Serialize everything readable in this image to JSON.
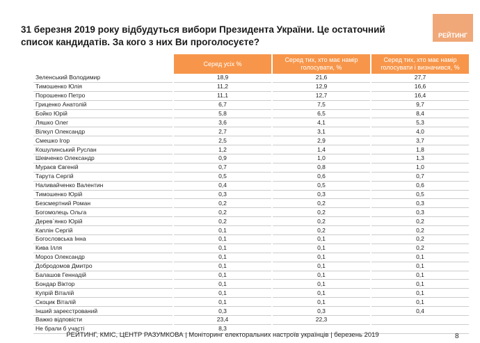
{
  "header": {
    "title": "31 березня 2019 року відбудуться вибори Президента України. Це остаточний список кандидатів. За кого з них Ви проголосуєте?",
    "logo": "РЕЙТИНГ"
  },
  "table": {
    "columns": [
      "Серед усіх %",
      "Серед тих, хто має намір голосувати, %",
      "Серед тих, хто має намір голосувати і визначився, %"
    ],
    "rows": [
      [
        "Зеленський Володимир",
        "18,9",
        "21,6",
        "27,7"
      ],
      [
        "Тимошенко Юлія",
        "11,2",
        "12,9",
        "16,6"
      ],
      [
        "Порошенко Петро",
        "11,1",
        "12,7",
        "16,4"
      ],
      [
        "Гриценко Анатолій",
        "6,7",
        "7,5",
        "9,7"
      ],
      [
        "Бойко Юрій",
        "5,8",
        "6,5",
        "8,4"
      ],
      [
        "Ляшко Олег",
        "3,6",
        "4,1",
        "5,3"
      ],
      [
        "Вілкул Олександр",
        "2,7",
        "3,1",
        "4,0"
      ],
      [
        "Смешко Ігор",
        "2,5",
        "2,9",
        "3,7"
      ],
      [
        "Кошулинський Руслан",
        "1,2",
        "1,4",
        "1,8"
      ],
      [
        "Шевченко Олександр",
        "0,9",
        "1,0",
        "1,3"
      ],
      [
        "Мураєв Євгеній",
        "0,7",
        "0,8",
        "1,0"
      ],
      [
        "Тарута Сергій",
        "0,5",
        "0,6",
        "0,7"
      ],
      [
        "Наливайченко Валентин",
        "0,4",
        "0,5",
        "0,6"
      ],
      [
        "Тимошенко Юрій",
        "0,3",
        "0,3",
        "0,5"
      ],
      [
        "Безсмертний Роман",
        "0,2",
        "0,2",
        "0,3"
      ],
      [
        "Богомолець Ольга",
        "0,2",
        "0,2",
        "0,3"
      ],
      [
        "Дерев`янко Юрій",
        "0,2",
        "0,2",
        "0,2"
      ],
      [
        "Каплін Сергій",
        "0,1",
        "0,2",
        "0,2"
      ],
      [
        "Богословська Інна",
        "0,1",
        "0,1",
        "0,2"
      ],
      [
        "Кива Ілля",
        "0,1",
        "0,1",
        "0,2"
      ],
      [
        "Мороз Олександр",
        "0,1",
        "0,1",
        "0,1"
      ],
      [
        "Добродомов Дмитро",
        "0,1",
        "0,1",
        "0,1"
      ],
      [
        "Балашов Геннадій",
        "0,1",
        "0,1",
        "0,1"
      ],
      [
        "Бондар Віктор",
        "0,1",
        "0,1",
        "0,1"
      ],
      [
        "Купрій Віталій",
        "0,1",
        "0,1",
        "0,1"
      ],
      [
        "Скоцик Віталій",
        "0,1",
        "0,1",
        "0,1"
      ],
      [
        "Інший зареєстрований",
        "0,3",
        "0,3",
        "0,4"
      ],
      [
        "Важко відповісти",
        "23,4",
        "22,3"
      ],
      [
        "Не брали б участі",
        "8,3"
      ]
    ]
  },
  "footer": {
    "source": "РЕЙТИНГ, КМІС, ЦЕНТР РАЗУМКОВА  | Моніторинг електоральних настроїв українців | березень 2019",
    "page": "8"
  }
}
